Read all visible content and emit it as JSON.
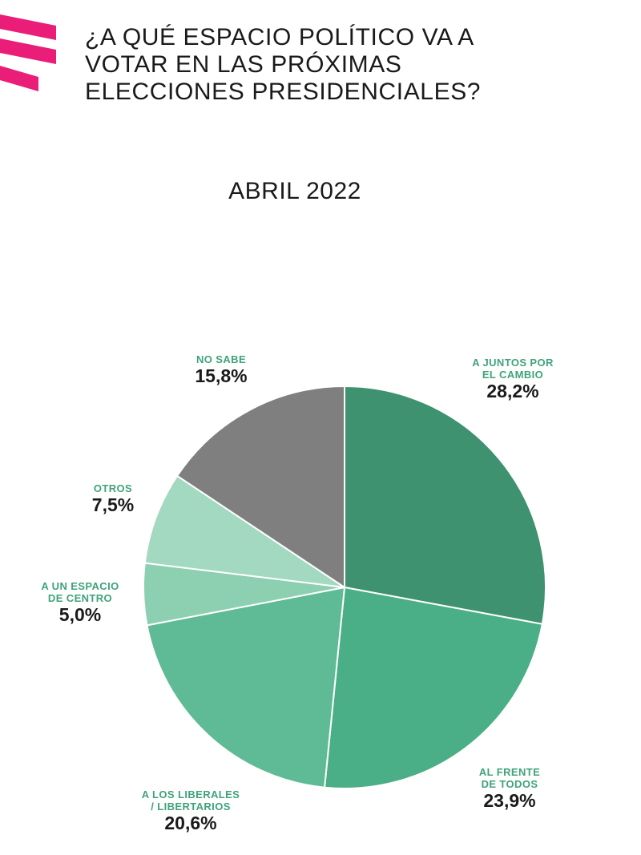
{
  "header": {
    "title_lines": [
      "¿A QUÉ ESPACIO POLÍTICO VA A",
      "VOTAR EN LAS PRÓXIMAS",
      "ELECCIONES PRESIDENCIALES?"
    ],
    "subtitle": "ABRIL 2022",
    "brand_color": "#ea1e79"
  },
  "chart_data": {
    "type": "pie",
    "title": "¿A QUÉ ESPACIO POLÍTICO VA A VOTAR EN LAS PRÓXIMAS ELECCIONES PRESIDENCIALES?",
    "subtitle": "ABRIL 2022",
    "start": "12 o'clock",
    "direction": "clockwise",
    "slices": [
      {
        "label_lines": [
          "A JUNTOS POR",
          "EL CAMBIO"
        ],
        "value": 28.2,
        "value_label": "28,2%",
        "color": "#3e9270"
      },
      {
        "label_lines": [
          "AL FRENTE",
          "DE TODOS"
        ],
        "value": 23.9,
        "value_label": "23,9%",
        "color": "#4aae86"
      },
      {
        "label_lines": [
          "A LOS LIBERALES",
          "/ LIBERTARIOS"
        ],
        "value": 20.6,
        "value_label": "20,6%",
        "color": "#5fbb95"
      },
      {
        "label_lines": [
          "A UN ESPACIO",
          "DE CENTRO"
        ],
        "value": 5.0,
        "value_label": "5,0%",
        "color": "#8ccfb1"
      },
      {
        "label_lines": [
          "OTROS"
        ],
        "value": 7.5,
        "value_label": "7,5%",
        "color": "#a2d9c0"
      },
      {
        "label_lines": [
          "NO SABE"
        ],
        "value": 15.8,
        "value_label": "15,8%",
        "color": "#7f7f7f"
      }
    ]
  }
}
